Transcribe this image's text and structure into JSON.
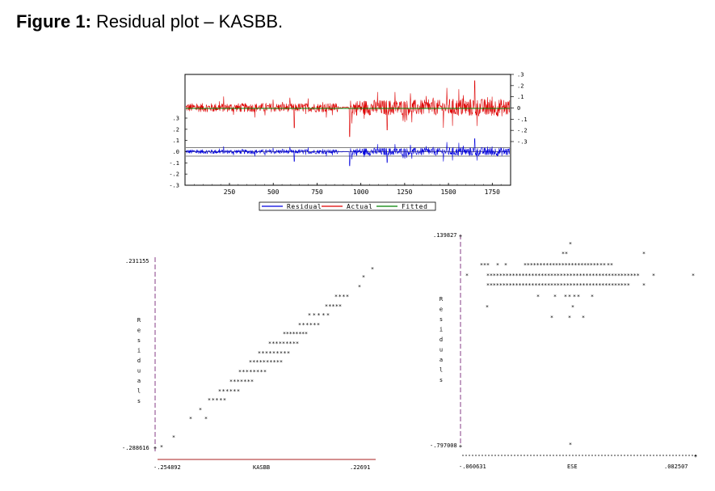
{
  "figure": {
    "label": "Figure 1:",
    "caption": "Residual plot – KASBB."
  },
  "chart_data": [
    {
      "type": "line",
      "x_ticks": [
        "250",
        "500",
        "750",
        "1000",
        "1250",
        "1500",
        "1750"
      ],
      "xlim": [
        1,
        1850
      ],
      "y_left_ticks": [
        ".3",
        ".2",
        ".1",
        ".0",
        "-.1",
        "-.2",
        "-.3"
      ],
      "y_right_ticks": [
        ".3",
        ".2",
        ".1",
        "0",
        "-.1",
        "-.2",
        "-.3"
      ],
      "series": [
        {
          "name": "Residual",
          "color": "#0000dd",
          "axis": "left"
        },
        {
          "name": "Actual",
          "color": "#dd0000",
          "axis": "right"
        },
        {
          "name": "Fitted",
          "color": "#008000",
          "axis": "right"
        }
      ],
      "gap_range": [
        870,
        935
      ],
      "legend_position": "bottom"
    },
    {
      "type": "scatter",
      "xlabel": "KASBB",
      "ylabel": "Residuals",
      "x_min_label": "-.254892",
      "x_max_label": ".22691",
      "y_max_label": ".231155",
      "y_min_label": "-.288616",
      "marker": "*",
      "pattern": "diagonal band of points rising from lower left to upper right"
    },
    {
      "type": "scatter",
      "xlabel": "ESE",
      "ylabel": "Residuals",
      "x_min_label": "-.060631",
      "x_max_label": ".082507",
      "y_max_label": ".139827",
      "y_min_label": "-.797008",
      "marker": "*",
      "pattern": "points concentrated in a horizontal band near the top, one outlier near the bottom"
    }
  ]
}
